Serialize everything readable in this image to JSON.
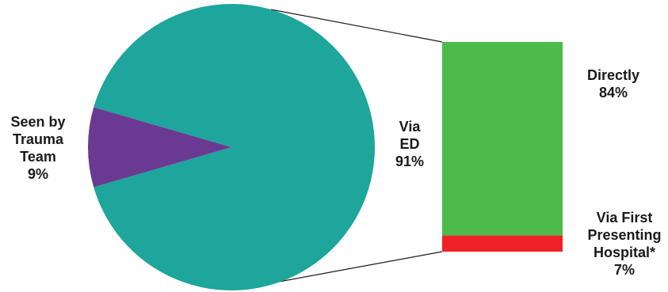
{
  "chart_data": {
    "type": "bar-of-pie",
    "pie": {
      "slices": [
        {
          "label_lines": [
            "Via",
            "ED",
            "91%"
          ],
          "value": 91,
          "color": "#1ea59c"
        },
        {
          "label_lines": [
            "Seen by",
            "Trauma",
            "Team",
            "9%"
          ],
          "value": 9,
          "color": "#6a3a93"
        }
      ]
    },
    "bar": {
      "parent_slice": 0,
      "segments": [
        {
          "label_lines": [
            "Directly",
            "84%"
          ],
          "value": 84,
          "color": "#4cbb4c"
        },
        {
          "label_lines": [
            "Via First",
            "Presenting",
            "Hospital*",
            "7%"
          ],
          "value": 7,
          "color": "#ef2127"
        }
      ]
    },
    "connector_color": "#1a1a1a"
  }
}
